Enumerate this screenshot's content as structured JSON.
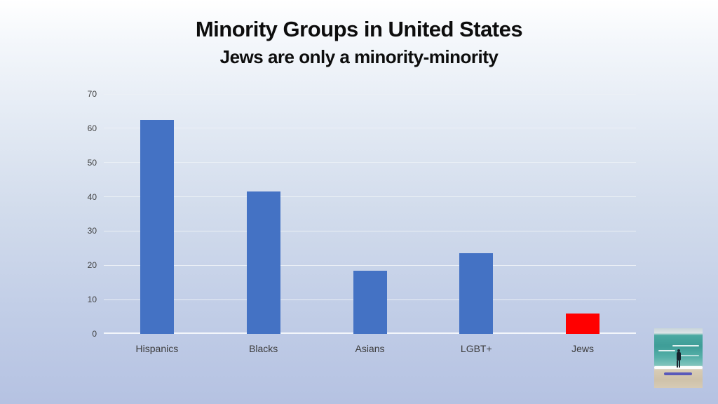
{
  "slide": {
    "title": "Minority Groups in United States",
    "subtitle": "Jews are only a minority-minority"
  },
  "chart_data": {
    "type": "bar",
    "title": "Minority Groups in United States",
    "subtitle": "Jews are only a minority-minority",
    "categories": [
      "Hispanics",
      "Blacks",
      "Asians",
      "LGBT+",
      "Jews"
    ],
    "values": [
      62.5,
      41.5,
      18.5,
      23.5,
      6
    ],
    "bar_colors": [
      "#4472C4",
      "#4472C4",
      "#4472C4",
      "#4472C4",
      "#FF0000"
    ],
    "xlabel": "",
    "ylabel": "",
    "ylim": [
      0,
      70
    ],
    "yticks": [
      0,
      10,
      20,
      30,
      40,
      50,
      60,
      70
    ],
    "grid": true,
    "legend": false
  },
  "colors": {
    "bar_blue": "#4472C4",
    "bar_red": "#FF0000",
    "background_top": "#FFFFFF",
    "background_bottom": "#B5C2E2",
    "gridline": "#ECF0F6",
    "tick_text": "#404040",
    "title_text": "#0D0D0D"
  },
  "photo": {
    "name": "beach-photo",
    "content": "person standing on beach facing the sea"
  }
}
